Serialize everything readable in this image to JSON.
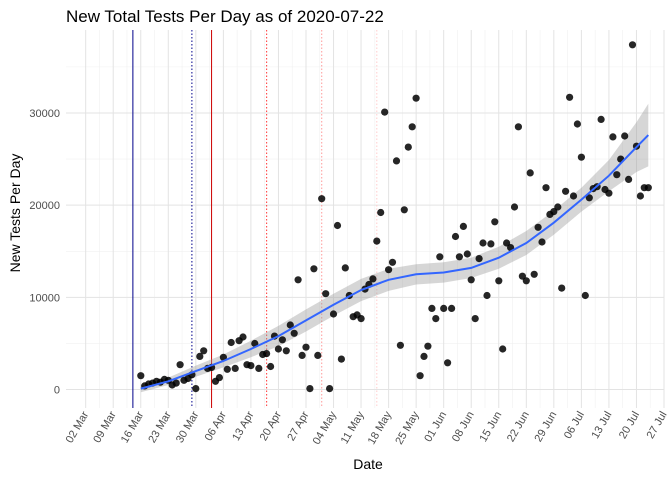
{
  "chart_data": {
    "type": "scatter",
    "title": "New Total Tests Per Day as of 2020-07-22",
    "xlabel": "Date",
    "ylabel": "New Tests Per Day",
    "x_tick_labels": [
      "02 Mar",
      "09 Mar",
      "16 Mar",
      "23 Mar",
      "30 Mar",
      "06 Apr",
      "13 Apr",
      "20 Apr",
      "27 Apr",
      "04 May",
      "11 May",
      "18 May",
      "25 May",
      "01 Jun",
      "08 Jun",
      "15 Jun",
      "22 Jun",
      "29 Jun",
      "06 Jul",
      "13 Jul",
      "20 Jul",
      "27 Jul"
    ],
    "x_tick_dates": [
      "2020-03-02",
      "2020-03-09",
      "2020-03-16",
      "2020-03-23",
      "2020-03-30",
      "2020-04-06",
      "2020-04-13",
      "2020-04-20",
      "2020-04-27",
      "2020-05-04",
      "2020-05-11",
      "2020-05-18",
      "2020-05-25",
      "2020-06-01",
      "2020-06-08",
      "2020-06-15",
      "2020-06-22",
      "2020-06-29",
      "2020-07-06",
      "2020-07-13",
      "2020-07-20",
      "2020-07-27"
    ],
    "x_range": [
      "2020-02-26",
      "2020-07-27"
    ],
    "y_ticks": [
      0,
      10000,
      20000,
      30000
    ],
    "y_tick_labels": [
      "0",
      "10000",
      "20000",
      "30000"
    ],
    "ylim": [
      -2000,
      39000
    ],
    "grid": true,
    "theme": "minimal",
    "point_color": "#000000",
    "smooth_color": "#3366FF",
    "band_color": "#999999",
    "vlines": [
      {
        "date": "2020-03-14",
        "color": "#00008b",
        "style": "solid"
      },
      {
        "date": "2020-03-29",
        "color": "#00008b",
        "style": "dotted"
      },
      {
        "date": "2020-04-03",
        "color": "#cc0000",
        "style": "solid"
      },
      {
        "date": "2020-04-17",
        "color": "#ff3333",
        "style": "dotted"
      },
      {
        "date": "2020-05-01",
        "color": "#ff9999",
        "style": "dotted"
      },
      {
        "date": "2020-05-15",
        "color": "#ffcccc",
        "style": "dotted"
      }
    ],
    "points": [
      {
        "x": "2020-03-16",
        "y": 1500
      },
      {
        "x": "2020-03-17",
        "y": 400
      },
      {
        "x": "2020-03-18",
        "y": 600
      },
      {
        "x": "2020-03-19",
        "y": 700
      },
      {
        "x": "2020-03-20",
        "y": 900
      },
      {
        "x": "2020-03-21",
        "y": 800
      },
      {
        "x": "2020-03-22",
        "y": 1100
      },
      {
        "x": "2020-03-23",
        "y": 1000
      },
      {
        "x": "2020-03-24",
        "y": 500
      },
      {
        "x": "2020-03-25",
        "y": 700
      },
      {
        "x": "2020-03-26",
        "y": 2700
      },
      {
        "x": "2020-03-27",
        "y": 1000
      },
      {
        "x": "2020-03-28",
        "y": 1200
      },
      {
        "x": "2020-03-29",
        "y": 1600
      },
      {
        "x": "2020-03-30",
        "y": 100
      },
      {
        "x": "2020-03-31",
        "y": 3600
      },
      {
        "x": "2020-04-01",
        "y": 4200
      },
      {
        "x": "2020-04-02",
        "y": 2300
      },
      {
        "x": "2020-04-03",
        "y": 2400
      },
      {
        "x": "2020-04-04",
        "y": 900
      },
      {
        "x": "2020-04-05",
        "y": 1300
      },
      {
        "x": "2020-04-06",
        "y": 3500
      },
      {
        "x": "2020-04-07",
        "y": 2200
      },
      {
        "x": "2020-04-08",
        "y": 5100
      },
      {
        "x": "2020-04-09",
        "y": 2300
      },
      {
        "x": "2020-04-10",
        "y": 5300
      },
      {
        "x": "2020-04-11",
        "y": 5700
      },
      {
        "x": "2020-04-12",
        "y": 2700
      },
      {
        "x": "2020-04-13",
        "y": 2600
      },
      {
        "x": "2020-04-14",
        "y": 5000
      },
      {
        "x": "2020-04-15",
        "y": 2300
      },
      {
        "x": "2020-04-16",
        "y": 3800
      },
      {
        "x": "2020-04-17",
        "y": 3900
      },
      {
        "x": "2020-04-18",
        "y": 2500
      },
      {
        "x": "2020-04-19",
        "y": 5800
      },
      {
        "x": "2020-04-20",
        "y": 4400
      },
      {
        "x": "2020-04-21",
        "y": 5400
      },
      {
        "x": "2020-04-22",
        "y": 4200
      },
      {
        "x": "2020-04-23",
        "y": 7000
      },
      {
        "x": "2020-04-24",
        "y": 6100
      },
      {
        "x": "2020-04-25",
        "y": 11900
      },
      {
        "x": "2020-04-26",
        "y": 3700
      },
      {
        "x": "2020-04-27",
        "y": 4600
      },
      {
        "x": "2020-04-28",
        "y": 100
      },
      {
        "x": "2020-04-29",
        "y": 13100
      },
      {
        "x": "2020-04-30",
        "y": 3700
      },
      {
        "x": "2020-05-01",
        "y": 20700
      },
      {
        "x": "2020-05-02",
        "y": 10400
      },
      {
        "x": "2020-05-03",
        "y": 100
      },
      {
        "x": "2020-05-04",
        "y": 8200
      },
      {
        "x": "2020-05-05",
        "y": 17800
      },
      {
        "x": "2020-05-06",
        "y": 3300
      },
      {
        "x": "2020-05-07",
        "y": 13200
      },
      {
        "x": "2020-05-08",
        "y": 10200
      },
      {
        "x": "2020-05-09",
        "y": 7900
      },
      {
        "x": "2020-05-10",
        "y": 8100
      },
      {
        "x": "2020-05-11",
        "y": 7700
      },
      {
        "x": "2020-05-12",
        "y": 10900
      },
      {
        "x": "2020-05-13",
        "y": 11400
      },
      {
        "x": "2020-05-14",
        "y": 12000
      },
      {
        "x": "2020-05-15",
        "y": 16100
      },
      {
        "x": "2020-05-16",
        "y": 19200
      },
      {
        "x": "2020-05-17",
        "y": 30100
      },
      {
        "x": "2020-05-18",
        "y": 13000
      },
      {
        "x": "2020-05-19",
        "y": 13800
      },
      {
        "x": "2020-05-20",
        "y": 24800
      },
      {
        "x": "2020-05-21",
        "y": 4800
      },
      {
        "x": "2020-05-22",
        "y": 19500
      },
      {
        "x": "2020-05-23",
        "y": 26300
      },
      {
        "x": "2020-05-24",
        "y": 28500
      },
      {
        "x": "2020-05-25",
        "y": 31600
      },
      {
        "x": "2020-05-26",
        "y": 1500
      },
      {
        "x": "2020-05-27",
        "y": 3600
      },
      {
        "x": "2020-05-28",
        "y": 4700
      },
      {
        "x": "2020-05-29",
        "y": 8800
      },
      {
        "x": "2020-05-30",
        "y": 7700
      },
      {
        "x": "2020-05-31",
        "y": 14400
      },
      {
        "x": "2020-06-01",
        "y": 8800
      },
      {
        "x": "2020-06-02",
        "y": 2900
      },
      {
        "x": "2020-06-03",
        "y": 8800
      },
      {
        "x": "2020-06-04",
        "y": 16600
      },
      {
        "x": "2020-06-05",
        "y": 14400
      },
      {
        "x": "2020-06-06",
        "y": 17700
      },
      {
        "x": "2020-06-07",
        "y": 14700
      },
      {
        "x": "2020-06-08",
        "y": 11900
      },
      {
        "x": "2020-06-09",
        "y": 7700
      },
      {
        "x": "2020-06-10",
        "y": 14200
      },
      {
        "x": "2020-06-11",
        "y": 15900
      },
      {
        "x": "2020-06-12",
        "y": 10200
      },
      {
        "x": "2020-06-13",
        "y": 15800
      },
      {
        "x": "2020-06-14",
        "y": 18200
      },
      {
        "x": "2020-06-15",
        "y": 11800
      },
      {
        "x": "2020-06-16",
        "y": 4400
      },
      {
        "x": "2020-06-17",
        "y": 15900
      },
      {
        "x": "2020-06-18",
        "y": 15400
      },
      {
        "x": "2020-06-19",
        "y": 19800
      },
      {
        "x": "2020-06-20",
        "y": 28500
      },
      {
        "x": "2020-06-21",
        "y": 12300
      },
      {
        "x": "2020-06-22",
        "y": 11800
      },
      {
        "x": "2020-06-23",
        "y": 23500
      },
      {
        "x": "2020-06-24",
        "y": 12500
      },
      {
        "x": "2020-06-25",
        "y": 17600
      },
      {
        "x": "2020-06-26",
        "y": 16000
      },
      {
        "x": "2020-06-27",
        "y": 21900
      },
      {
        "x": "2020-06-28",
        "y": 19000
      },
      {
        "x": "2020-06-29",
        "y": 19300
      },
      {
        "x": "2020-06-30",
        "y": 19800
      },
      {
        "x": "2020-07-01",
        "y": 11000
      },
      {
        "x": "2020-07-02",
        "y": 21500
      },
      {
        "x": "2020-07-03",
        "y": 31700
      },
      {
        "x": "2020-07-04",
        "y": 21000
      },
      {
        "x": "2020-07-05",
        "y": 28800
      },
      {
        "x": "2020-07-06",
        "y": 25200
      },
      {
        "x": "2020-07-07",
        "y": 10200
      },
      {
        "x": "2020-07-08",
        "y": 20800
      },
      {
        "x": "2020-07-09",
        "y": 21800
      },
      {
        "x": "2020-07-10",
        "y": 22000
      },
      {
        "x": "2020-07-11",
        "y": 29300
      },
      {
        "x": "2020-07-12",
        "y": 21700
      },
      {
        "x": "2020-07-13",
        "y": 21300
      },
      {
        "x": "2020-07-14",
        "y": 27400
      },
      {
        "x": "2020-07-15",
        "y": 23300
      },
      {
        "x": "2020-07-16",
        "y": 25000
      },
      {
        "x": "2020-07-17",
        "y": 27500
      },
      {
        "x": "2020-07-18",
        "y": 22800
      },
      {
        "x": "2020-07-19",
        "y": 37400
      },
      {
        "x": "2020-07-20",
        "y": 26400
      },
      {
        "x": "2020-07-21",
        "y": 21000
      },
      {
        "x": "2020-07-22",
        "y": 21900
      },
      {
        "x": "2020-07-23",
        "y": 21900
      }
    ],
    "smooth": [
      {
        "x": "2020-03-16",
        "y": 100,
        "lo": -300,
        "hi": 500
      },
      {
        "x": "2020-03-23",
        "y": 900,
        "lo": 500,
        "hi": 1300
      },
      {
        "x": "2020-03-30",
        "y": 2000,
        "lo": 1400,
        "hi": 2600
      },
      {
        "x": "2020-04-06",
        "y": 3100,
        "lo": 2400,
        "hi": 3800
      },
      {
        "x": "2020-04-13",
        "y": 4400,
        "lo": 3500,
        "hi": 5300
      },
      {
        "x": "2020-04-20",
        "y": 5800,
        "lo": 4700,
        "hi": 6900
      },
      {
        "x": "2020-04-27",
        "y": 7500,
        "lo": 6300,
        "hi": 8700
      },
      {
        "x": "2020-05-04",
        "y": 9200,
        "lo": 8000,
        "hi": 10400
      },
      {
        "x": "2020-05-11",
        "y": 10800,
        "lo": 9600,
        "hi": 12000
      },
      {
        "x": "2020-05-18",
        "y": 11900,
        "lo": 10700,
        "hi": 13100
      },
      {
        "x": "2020-05-25",
        "y": 12500,
        "lo": 11400,
        "hi": 13600
      },
      {
        "x": "2020-06-01",
        "y": 12700,
        "lo": 11600,
        "hi": 13800
      },
      {
        "x": "2020-06-08",
        "y": 13200,
        "lo": 12100,
        "hi": 14300
      },
      {
        "x": "2020-06-15",
        "y": 14300,
        "lo": 13100,
        "hi": 15500
      },
      {
        "x": "2020-06-22",
        "y": 15900,
        "lo": 14600,
        "hi": 17200
      },
      {
        "x": "2020-06-29",
        "y": 18100,
        "lo": 16800,
        "hi": 19400
      },
      {
        "x": "2020-07-06",
        "y": 20600,
        "lo": 19300,
        "hi": 21900
      },
      {
        "x": "2020-07-13",
        "y": 23200,
        "lo": 21500,
        "hi": 24900
      },
      {
        "x": "2020-07-20",
        "y": 26300,
        "lo": 23600,
        "hi": 29000
      },
      {
        "x": "2020-07-23",
        "y": 27600,
        "lo": 24200,
        "hi": 31000
      }
    ]
  }
}
